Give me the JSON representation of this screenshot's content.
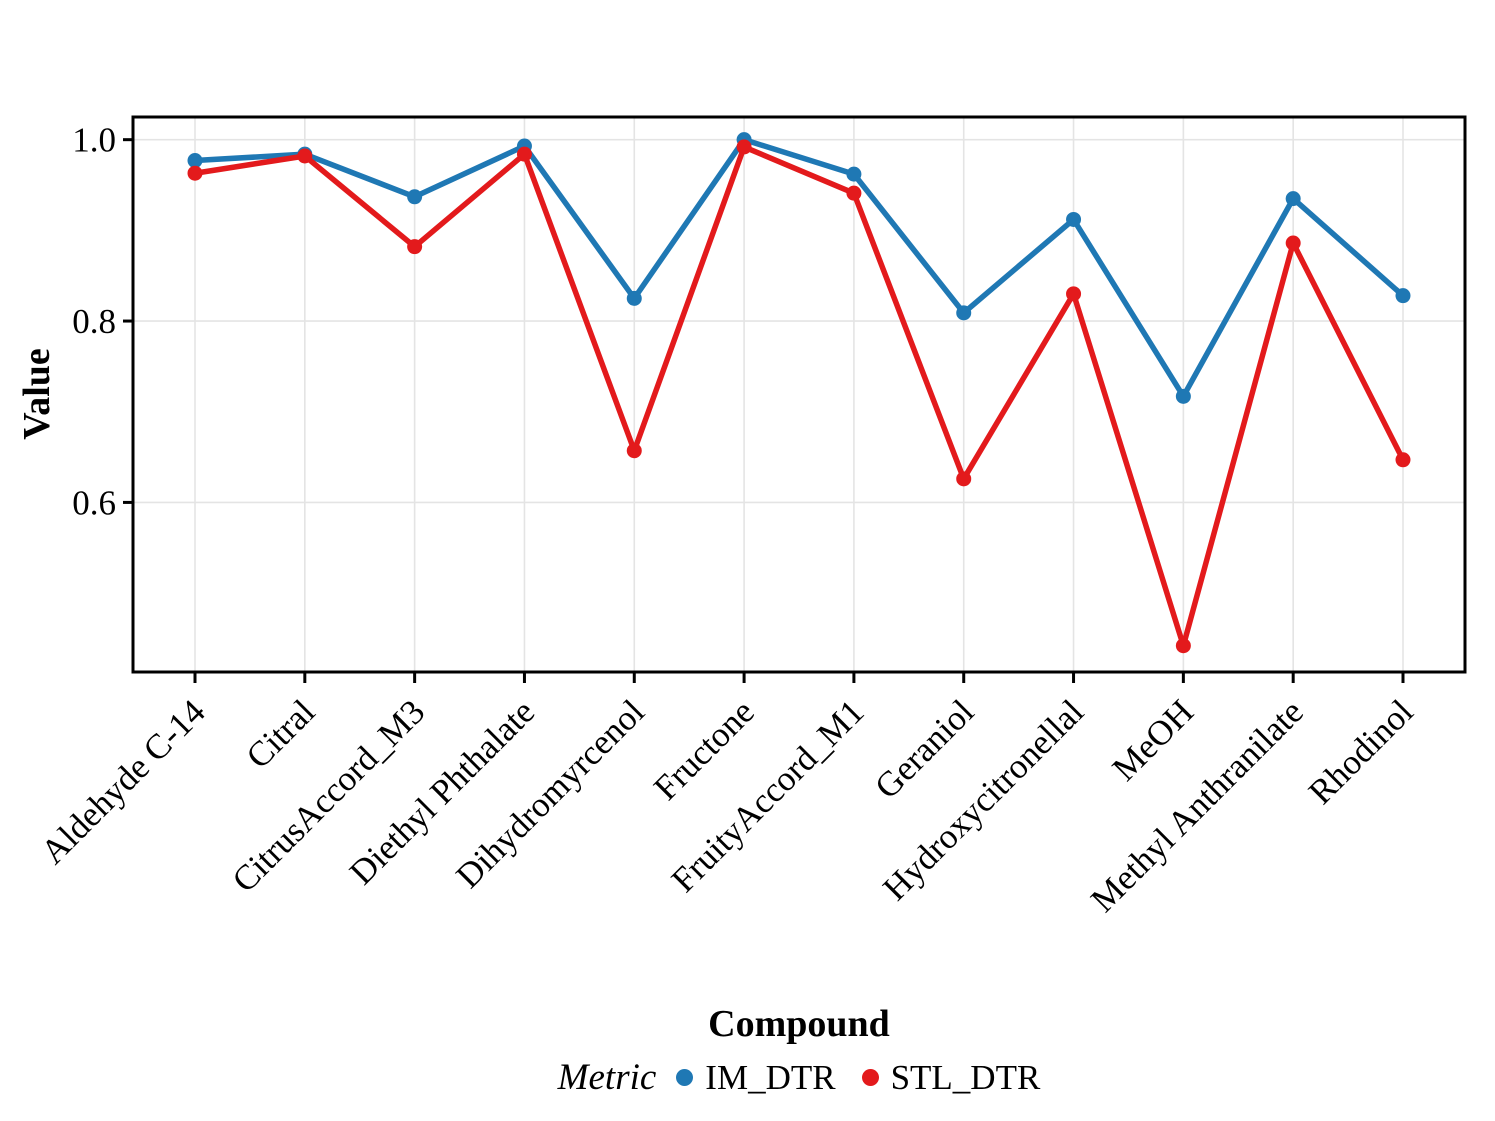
{
  "chart_data": {
    "type": "line",
    "title": "",
    "xlabel": "Compound",
    "ylabel": "Value",
    "categories": [
      "Aldehyde C-14",
      "Citral",
      "CitrusAccord_M3",
      "Diethyl Phthalate",
      "Dihydromyrcenol",
      "Fructone",
      "FruityAccord_M1",
      "Geraniol",
      "Hydroxycitronellal",
      "MeOH",
      "Methyl Anthranilate",
      "Rhodinol"
    ],
    "series": [
      {
        "name": "IM_DTR",
        "color": "#1f78b4",
        "values": [
          0.977,
          0.984,
          0.937,
          0.993,
          0.825,
          1.0,
          0.962,
          0.809,
          0.912,
          0.717,
          0.935,
          0.828
        ]
      },
      {
        "name": "STL_DTR",
        "color": "#e31a1c",
        "values": [
          0.963,
          0.982,
          0.882,
          0.984,
          0.657,
          0.992,
          0.941,
          0.626,
          0.83,
          0.442,
          0.886,
          0.647
        ]
      }
    ],
    "y_ticks": [
      0.6,
      0.8,
      1.0
    ],
    "y_tick_labels": [
      "0.6",
      "0.8",
      "1.0"
    ],
    "ylim": [
      0.413,
      1.025
    ],
    "grid": "major",
    "legend_title": "Metric",
    "legend_position": "bottom"
  },
  "style": {
    "grid_color": "#e4e4e4",
    "axis_color": "#000000",
    "background": "#ffffff"
  }
}
